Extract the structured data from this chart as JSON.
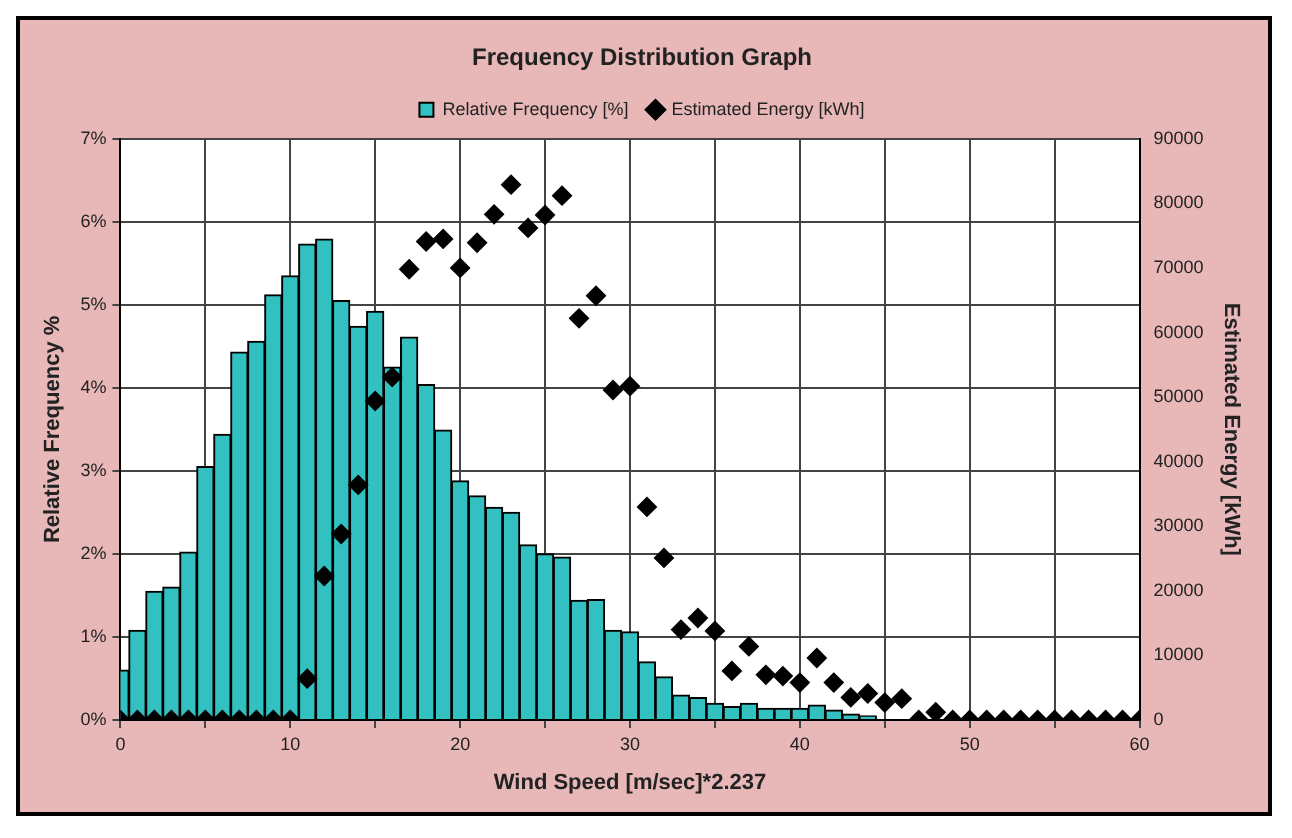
{
  "chart_data": {
    "type": "bar",
    "title": "Frequency Distribution Graph",
    "xlabel": "Wind Speed [m/sec]*2.237",
    "ylabel": "Relative Frequency %",
    "y2label": "Estimated Energy [kWh]",
    "series": [
      {
        "name": "Relative Frequency [%]",
        "color": "#33c0c0",
        "x": [
          0,
          1,
          2,
          3,
          4,
          5,
          6,
          7,
          8,
          9,
          10,
          11,
          12,
          13,
          14,
          15,
          16,
          17,
          18,
          19,
          20,
          21,
          22,
          23,
          24,
          25,
          26,
          27,
          28,
          29,
          30,
          31,
          32,
          33,
          34,
          35,
          36,
          37,
          38,
          39,
          40,
          41,
          42,
          43,
          44
        ],
        "values": [
          0.6,
          1.08,
          1.55,
          1.6,
          2.02,
          3.05,
          3.44,
          4.43,
          4.56,
          5.12,
          5.35,
          5.73,
          5.79,
          5.05,
          4.74,
          4.92,
          4.25,
          4.61,
          4.04,
          3.49,
          2.88,
          2.7,
          2.56,
          2.5,
          2.11,
          2.0,
          1.96,
          1.44,
          1.45,
          1.08,
          1.06,
          0.7,
          0.52,
          0.3,
          0.27,
          0.2,
          0.16,
          0.2,
          0.14,
          0.14,
          0.14,
          0.18,
          0.12,
          0.07,
          0.05
        ]
      },
      {
        "name": "Estimated Energy [kWh]",
        "type": "scatter",
        "axis": "y2",
        "color": "#000000",
        "x": [
          0,
          1,
          2,
          3,
          4,
          5,
          6,
          7,
          8,
          9,
          10,
          11,
          12,
          13,
          14,
          15,
          16,
          17,
          18,
          19,
          20,
          21,
          22,
          23,
          24,
          25,
          26,
          27,
          28,
          29,
          30,
          31,
          32,
          33,
          34,
          35,
          36,
          37,
          38,
          39,
          40,
          41,
          42,
          43,
          44,
          45,
          46,
          47,
          48,
          49,
          50,
          51,
          52,
          53,
          54,
          55,
          56,
          57,
          58,
          59,
          60
        ],
        "values": [
          0,
          0,
          0,
          0,
          0,
          0,
          0,
          0,
          0,
          0,
          0,
          6400,
          22300,
          28800,
          36400,
          49400,
          53100,
          69800,
          74100,
          74500,
          70000,
          73900,
          78300,
          82900,
          76200,
          78200,
          81200,
          62200,
          65700,
          51100,
          51700,
          33000,
          25100,
          14000,
          15800,
          13800,
          7600,
          11400,
          7000,
          6800,
          5800,
          9600,
          5800,
          3500,
          4100,
          2700,
          3300,
          0,
          1200,
          0,
          0,
          0,
          0,
          0,
          0,
          0,
          0,
          0,
          0,
          0,
          0
        ]
      }
    ],
    "xlim": [
      0,
      60
    ],
    "xticks": [
      0,
      {
        "value": 5,
        "label": null
      },
      10,
      {
        "value": 15,
        "label": null
      },
      20,
      {
        "value": 25,
        "label": null
      },
      30,
      {
        "value": 35,
        "label": null
      },
      40,
      {
        "value": 45,
        "label": null
      },
      50,
      {
        "value": 55,
        "label": null
      },
      60
    ],
    "ylim": [
      0,
      7
    ],
    "yticks": [
      {
        "value": 0,
        "label": "0%"
      },
      {
        "value": 1,
        "label": "1%"
      },
      {
        "value": 2,
        "label": "2%"
      },
      {
        "value": 3,
        "label": "3%"
      },
      {
        "value": 4,
        "label": "4%"
      },
      {
        "value": 5,
        "label": "5%"
      },
      {
        "value": 6,
        "label": "6%"
      },
      {
        "value": 7,
        "label": "7%"
      }
    ],
    "y2lim": [
      0,
      90000
    ],
    "y2ticks": [
      0,
      10000,
      20000,
      30000,
      40000,
      50000,
      60000,
      70000,
      80000,
      90000
    ],
    "grid": true,
    "legend": "top",
    "marker": "diamond"
  }
}
